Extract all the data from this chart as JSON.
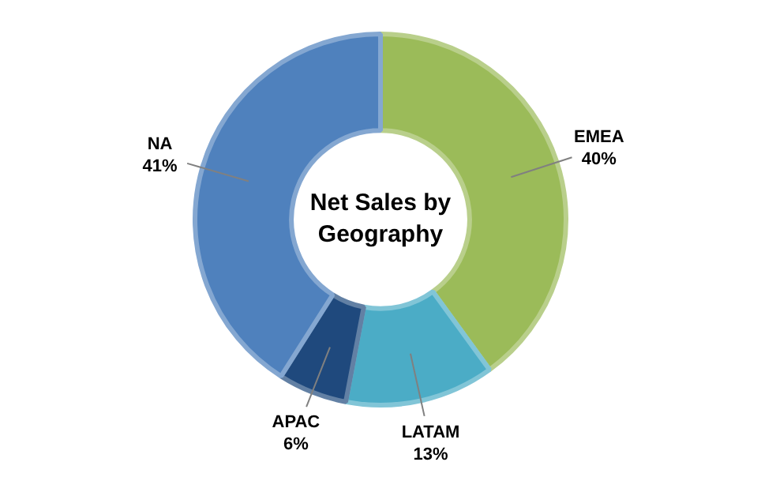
{
  "chart_data": {
    "type": "donut",
    "title": "Net Sales by Geography",
    "categories": [
      "EMEA",
      "LATAM",
      "APAC",
      "NA"
    ],
    "values": [
      40,
      13,
      6,
      41
    ],
    "value_labels": [
      "40%",
      "13%",
      "6%",
      "41%"
    ],
    "colors": [
      "#9bbb59",
      "#4bacc6",
      "#1f497d",
      "#4f81bd"
    ],
    "legend": false
  }
}
